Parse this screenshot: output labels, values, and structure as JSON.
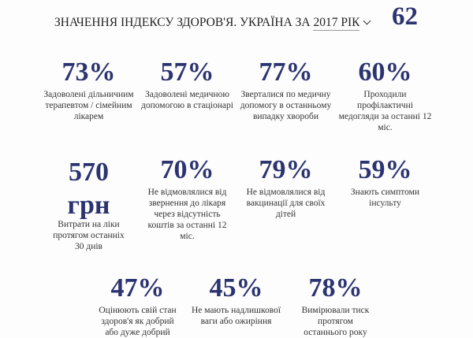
{
  "header": {
    "title": "ЗНАЧЕННЯ ІНДЕКСУ ЗДОРОВ'Я. УКРАЇНА ЗА",
    "year": "2017 РІК",
    "score": "62"
  },
  "stats": [
    {
      "value": "73%",
      "label": "Задоволені дільничним терапевтом / сімейним лікарем"
    },
    {
      "value": "57%",
      "label": "Задоволені медичною допомогою в стаціонарі"
    },
    {
      "value": "77%",
      "label": "Зверталися по медичну допомогу в останньому випадку хвороби"
    },
    {
      "value": "60%",
      "label": "Проходили профілактичні медогляди за останні 12 міс."
    },
    {
      "value": "570 грн",
      "label": "Витрати на ліки протягом останніх 30 днів"
    },
    {
      "value": "70%",
      "label": "Не відмовлялися від звернення до лікаря через відсутність коштів за останні 12 міс."
    },
    {
      "value": "79%",
      "label": "Не відмовлялися від вакцинації для своїх дітей"
    },
    {
      "value": "59%",
      "label": "Знають симптоми інсульту"
    },
    {
      "value": "47%",
      "label": "Оцінюють свій стан здоров'я як добрий або дуже добрий"
    },
    {
      "value": "45%",
      "label": "Не мають надлишкової ваги або ожиріння"
    },
    {
      "value": "78%",
      "label": "Вимірювали тиск протягом останнього року"
    }
  ]
}
